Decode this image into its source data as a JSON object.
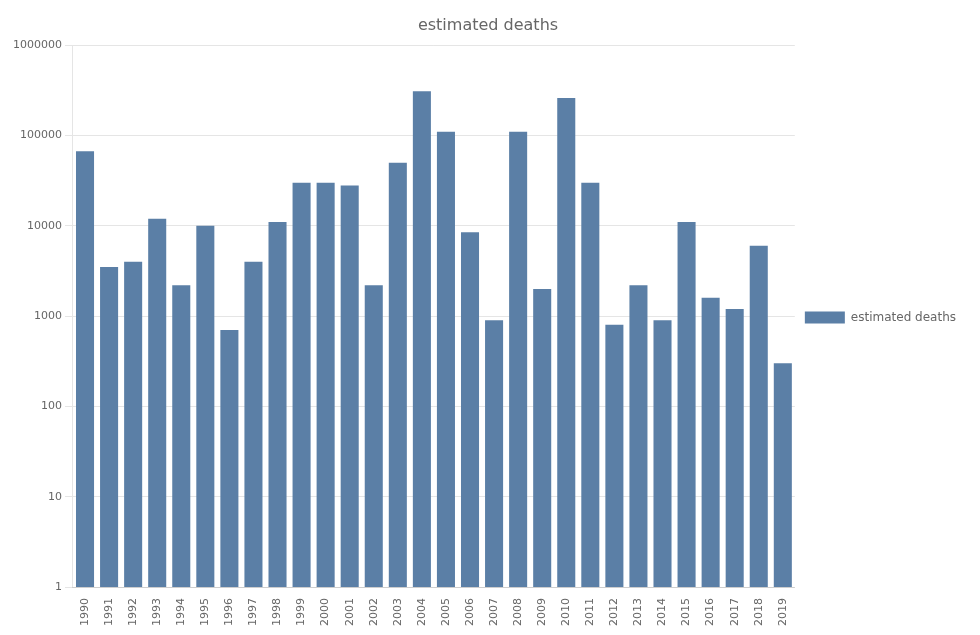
{
  "chart_data": {
    "type": "bar",
    "title": "estimated deaths",
    "categories": [
      "1990",
      "1991",
      "1992",
      "1993",
      "1994",
      "1995",
      "1996",
      "1997",
      "1998",
      "1999",
      "2000",
      "2001",
      "2002",
      "2003",
      "2004",
      "2005",
      "2006",
      "2007",
      "2008",
      "2009",
      "2010",
      "2011",
      "2012",
      "2013",
      "2014",
      "2015",
      "2016",
      "2017",
      "2018",
      "2019"
    ],
    "series": [
      {
        "name": "estimated deaths",
        "color": "#5b7fa6",
        "values": [
          67000,
          3500,
          4000,
          12000,
          2200,
          10000,
          700,
          4000,
          11000,
          30000,
          30000,
          28000,
          2200,
          50000,
          310000,
          110000,
          8500,
          900,
          110000,
          2000,
          260000,
          30000,
          800,
          2200,
          900,
          11000,
          1600,
          1200,
          6000,
          300
        ]
      }
    ],
    "log": "y",
    "ylim": [
      1,
      1000000
    ],
    "yticks": [
      1,
      10,
      100,
      1000,
      10000,
      100000,
      1000000
    ],
    "grid": true,
    "legend": "right"
  }
}
